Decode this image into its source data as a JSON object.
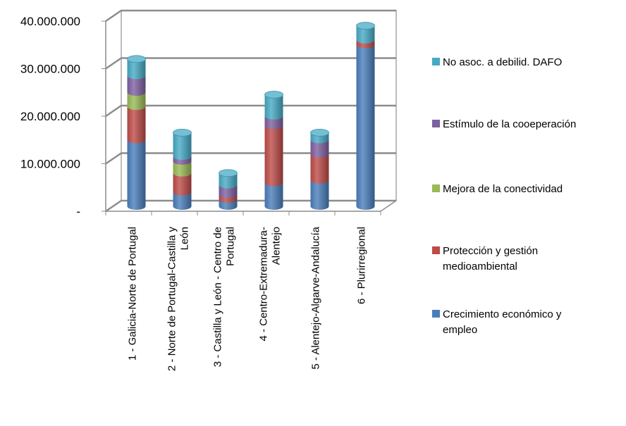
{
  "chart_data": {
    "type": "bar",
    "stacked": true,
    "style": "3d-cylinder",
    "categories": [
      [
        "1 - Galicia-Norte de Portugal"
      ],
      [
        "2 - Norte de Portugal-Castilla  y",
        "León"
      ],
      [
        "3 - Castilla  y León - Centro de",
        "Portugal"
      ],
      [
        "4 - Centro-Extremadura-",
        "Alentejo"
      ],
      [
        "5 - Alentejo-Algarve-Andalucía"
      ],
      [
        "6 - Plurirregional"
      ]
    ],
    "series": [
      {
        "name": "Crecimiento económico y empleo",
        "color": "#4a7ebb",
        "values": [
          14000000,
          3000000,
          1500000,
          5000000,
          5500000,
          34000000
        ]
      },
      {
        "name": "Protección y gestión medioambiental",
        "color": "#be4b48",
        "values": [
          7000000,
          4000000,
          1000000,
          12000000,
          5500000,
          1000000
        ]
      },
      {
        "name": "Mejora de la conectividad",
        "color": "#98b954",
        "values": [
          3000000,
          2500000,
          0,
          0,
          0,
          0
        ]
      },
      {
        "name": "Estímulo de la cooeperación",
        "color": "#7d60a0",
        "values": [
          3500000,
          1000000,
          2000000,
          2000000,
          3000000,
          0
        ]
      },
      {
        "name": "No asoc. a debilid. DAFO",
        "color": "#46aac5",
        "values": [
          3500000,
          5000000,
          2500000,
          4500000,
          1500000,
          3000000
        ]
      }
    ],
    "legend_labels": [
      [
        "No asoc. a debilid. DAFO"
      ],
      [
        "Estímulo de la cooeperación"
      ],
      [
        "Mejora de la conectividad"
      ],
      [
        "Protección y gestión",
        "medioambiental"
      ],
      [
        "Crecimiento económico y",
        "empleo"
      ]
    ],
    "yticks": [
      "-",
      "10.000.000",
      "20.000.000",
      "30.000.000",
      "40.000.000"
    ],
    "ylim": [
      0,
      40000000
    ],
    "legend_position": "right",
    "grid": true
  }
}
